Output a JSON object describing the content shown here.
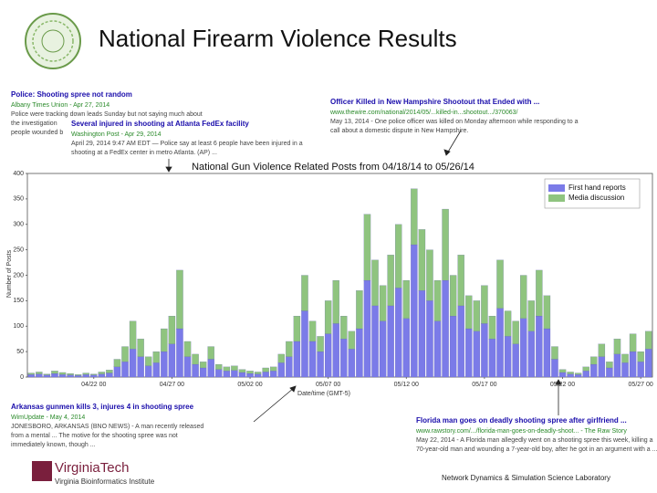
{
  "header": {
    "title": "National Firearm Violence Results"
  },
  "chart_data": {
    "type": "bar",
    "stacked": true,
    "title": "National Gun Violence Related Posts from 04/18/14 to 05/26/14",
    "x_label": "Date/time (GMT-5)",
    "y_label": "Number of Posts",
    "categories": [
      null,
      null,
      null,
      null,
      null,
      null,
      null,
      null,
      "04/22 00",
      null,
      null,
      null,
      null,
      null,
      null,
      null,
      null,
      null,
      "04/27 00",
      null,
      null,
      null,
      null,
      null,
      null,
      null,
      null,
      null,
      "05/02 00",
      null,
      null,
      null,
      null,
      null,
      null,
      null,
      null,
      null,
      "05/07 00",
      null,
      null,
      null,
      null,
      null,
      null,
      null,
      null,
      null,
      "05/12 00",
      null,
      null,
      null,
      null,
      null,
      null,
      null,
      null,
      null,
      "05/17 00",
      null,
      null,
      null,
      null,
      null,
      null,
      null,
      null,
      null,
      "05/22 00",
      null,
      null,
      null,
      null,
      null,
      null,
      null,
      null,
      null,
      "05/27 00",
      null
    ],
    "series": [
      {
        "name": "First hand reports",
        "color": "#7b7be8",
        "values": [
          5,
          6,
          4,
          7,
          5,
          4,
          3,
          5,
          4,
          6,
          8,
          20,
          30,
          55,
          40,
          22,
          28,
          50,
          65,
          95,
          40,
          25,
          18,
          35,
          15,
          12,
          13,
          9,
          7,
          6,
          10,
          12,
          28,
          40,
          70,
          130,
          70,
          50,
          85,
          105,
          75,
          55,
          95,
          190,
          140,
          110,
          140,
          175,
          115,
          260,
          170,
          150,
          110,
          190,
          120,
          140,
          95,
          90,
          105,
          75,
          135,
          80,
          65,
          115,
          90,
          120,
          95,
          35,
          9,
          6,
          5,
          12,
          25,
          40,
          18,
          45,
          28,
          50,
          30,
          55
        ]
      },
      {
        "name": "Media discussion",
        "color": "#8fc47f",
        "values": [
          3,
          4,
          2,
          5,
          4,
          3,
          2,
          3,
          2,
          4,
          6,
          15,
          30,
          55,
          35,
          18,
          22,
          45,
          55,
          115,
          30,
          20,
          12,
          25,
          10,
          8,
          9,
          6,
          5,
          4,
          8,
          8,
          17,
          30,
          50,
          70,
          40,
          30,
          65,
          85,
          45,
          35,
          75,
          130,
          90,
          70,
          100,
          125,
          75,
          110,
          120,
          100,
          80,
          140,
          80,
          100,
          65,
          60,
          75,
          45,
          95,
          50,
          45,
          85,
          60,
          90,
          65,
          25,
          6,
          4,
          3,
          8,
          15,
          25,
          12,
          30,
          17,
          35,
          20,
          35
        ]
      }
    ],
    "ylim": [
      0,
      400
    ],
    "yticks": [
      0,
      50,
      100,
      150,
      200,
      250,
      300,
      350,
      400
    ],
    "grid": false,
    "legend": "upper right"
  },
  "annotations": [
    {
      "title": "Police: Shooting spree not random",
      "source": "Albany Times Union - Apr 27, 2014",
      "lines": [
        "Police were tracking down leads Sunday but not saying much about",
        "the investigation",
        "people wounded b"
      ]
    },
    {
      "title": "Several injured in shooting at Atlanta FedEx facility",
      "source": "Washington Post - Apr 29, 2014",
      "lines": [
        "April 29, 2014 9:47 AM EDT — Police say at least 6 people have been injured in a",
        "shooting at a FedEx center in metro Atlanta. (AP) ..."
      ]
    },
    {
      "title": "Officer Killed in New Hampshire Shootout that Ended with ...",
      "source": "www.thewire.com/national/2014/05/...killed-in...shootout.../370063/",
      "lines": [
        "May 13, 2014 - One police officer was killed on Monday afternoon while responding to a",
        "call about a domestic dispute in New Hampshire."
      ]
    },
    {
      "title": "Arkansas gunmen kills 3, injures 4 in shooting spree",
      "source": "WimUpdate - May 4, 2014",
      "lines": [
        "JONESBORO, ARKANSAS (BNO NEWS) - A man recently released",
        "from a mental ... The motive for the shooting spree was not",
        "immediately known, though ..."
      ]
    },
    {
      "title": "Florida man goes on deadly shooting spree after girlfriend ...",
      "source": "www.rawstory.com/.../florida-man-goes-on-deadly-shoot... - The Raw Story",
      "lines": [
        "May 22, 2014 - A Florida man allegedly went on a shooting spree this week, killing a",
        "70-year-old man and wounding a 7-year-old boy, after he got in an argument with a ..."
      ]
    }
  ],
  "footer": {
    "university": "VirginiaTech",
    "institute": "Virginia Bioinformatics Institute",
    "lab": "Network Dynamics & Simulation Science Laboratory"
  }
}
